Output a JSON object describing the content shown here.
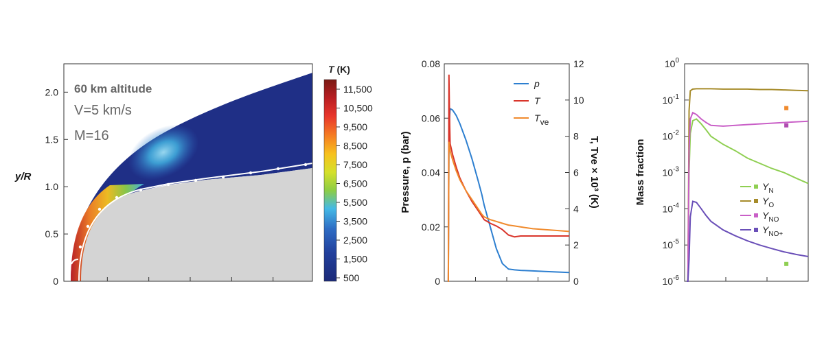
{
  "chart_data": [
    {
      "type": "heatmap",
      "annotations": [
        "60 km altitude",
        "V=5 km/s",
        "M=16"
      ],
      "ylabel": "y/R",
      "ylim": [
        0,
        2.3
      ],
      "y_ticks": [
        "0",
        "0.5",
        "1.0",
        "1.5",
        "2.0"
      ],
      "colorbar": {
        "title_var": "T",
        "title_unit": " (K)",
        "ticks": [
          "11,500",
          "10,500",
          "9,500",
          "8,500",
          "7,500",
          "6,500",
          "5,500",
          "3,500",
          "2,500",
          "1,500",
          "500"
        ],
        "colors": [
          "#7a1a14",
          "#b81e22",
          "#e8352b",
          "#f57f22",
          "#f7c21e",
          "#d4e02a",
          "#8ccd45",
          "#44b9e6",
          "#2e6cc4",
          "#213f9c",
          "#1b2a78"
        ]
      }
    },
    {
      "type": "line",
      "ylabel_left": "Pressure, p (bar)",
      "ylabel_right": "T, Tve × 10³ (K)",
      "ylim_left": [
        0,
        0.08
      ],
      "ylim_right": [
        0,
        12
      ],
      "left_ticks": [
        "0",
        "0.02",
        "0.04",
        "0.06",
        "0.08"
      ],
      "right_ticks": [
        "0",
        "2",
        "4",
        "6",
        "8",
        "10",
        "12"
      ],
      "x": [
        0,
        0.005,
        0.01,
        0.015,
        0.02,
        0.04,
        0.07,
        0.1,
        0.15,
        0.2,
        0.25,
        0.28,
        0.3,
        0.35,
        0.4,
        0.45,
        0.5,
        0.55,
        0.6,
        0.7,
        0.8,
        0.9,
        1.0
      ],
      "series": [
        {
          "name": "p",
          "axis": "left",
          "color": "#2d7fd0",
          "values": [
            0.0,
            0.0,
            0.048,
            0.06,
            0.0635,
            0.063,
            0.061,
            0.058,
            0.052,
            0.045,
            0.037,
            0.032,
            0.028,
            0.02,
            0.012,
            0.0065,
            0.0045,
            0.0042,
            0.004,
            0.0038,
            0.0036,
            0.0034,
            0.0032
          ]
        },
        {
          "name": "T",
          "axis": "right",
          "color": "#d9352b",
          "values": [
            0.0,
            0.0,
            11.4,
            9.0,
            7.6,
            7.0,
            6.3,
            5.7,
            5.0,
            4.4,
            3.9,
            3.6,
            3.4,
            3.2,
            3.05,
            2.85,
            2.55,
            2.45,
            2.5,
            2.5,
            2.5,
            2.5,
            2.5
          ]
        },
        {
          "name": "Tve",
          "axis": "right",
          "color": "#f08a2c",
          "values": [
            0.0,
            0.0,
            7.7,
            7.4,
            7.2,
            6.7,
            6.1,
            5.6,
            5.0,
            4.5,
            4.0,
            3.7,
            3.55,
            3.4,
            3.3,
            3.2,
            3.1,
            3.05,
            3.0,
            2.9,
            2.85,
            2.8,
            2.75
          ]
        }
      ],
      "legend": [
        "p",
        "T",
        "Tve"
      ]
    },
    {
      "type": "line",
      "yscale": "log",
      "ylabel": "Mass fraction",
      "ylim": [
        1e-06,
        1
      ],
      "y_ticks": [
        "10-6",
        "10-5",
        "10-4",
        "10-3",
        "10-2",
        "10-1",
        "100"
      ],
      "x": [
        0,
        0.01,
        0.02,
        0.03,
        0.05,
        0.08,
        0.12,
        0.16,
        0.2,
        0.3,
        0.4,
        0.5,
        0.6,
        0.7,
        0.8,
        0.9,
        1.0
      ],
      "series": [
        {
          "name": "YN",
          "color": "#8fcf52",
          "values": [
            1e-06,
            1e-06,
            0.001,
            0.012,
            0.027,
            0.03,
            0.022,
            0.015,
            0.01,
            0.006,
            0.004,
            0.0025,
            0.0018,
            0.0013,
            0.001,
            0.0007,
            0.0005
          ]
        },
        {
          "name": "YO",
          "color": "#a68b2a",
          "values": [
            1e-06,
            1e-06,
            0.05,
            0.18,
            0.2,
            0.205,
            0.205,
            0.205,
            0.205,
            0.2,
            0.2,
            0.2,
            0.195,
            0.195,
            0.19,
            0.185,
            0.18
          ]
        },
        {
          "name": "YNO",
          "color": "#c95fc7",
          "values": [
            1e-06,
            1e-06,
            0.004,
            0.03,
            0.045,
            0.04,
            0.03,
            0.024,
            0.02,
            0.019,
            0.02,
            0.021,
            0.022,
            0.023,
            0.024,
            0.025,
            0.026
          ]
        },
        {
          "name": "YNO+",
          "color": "#6a4fb8",
          "values": [
            1e-06,
            1e-06,
            4e-06,
            6e-05,
            0.00016,
            0.00015,
            0.0001,
            6.5e-05,
            4.5e-05,
            2.6e-05,
            1.8e-05,
            1.3e-05,
            1e-05,
            8e-06,
            6.5e-06,
            5.5e-06,
            4.8e-06
          ]
        }
      ],
      "markers": [
        {
          "name": "YO",
          "color": "#f08a2c",
          "x": 0.82,
          "y": 0.06
        },
        {
          "name": "YNO",
          "color": "#b04cb0",
          "x": 0.82,
          "y": 0.02
        },
        {
          "name": "YN",
          "color": "#8fcf52",
          "x": 0.82,
          "y": 3e-06
        }
      ],
      "legend": [
        {
          "base": "Y",
          "sub": "N"
        },
        {
          "base": "Y",
          "sub": "O"
        },
        {
          "base": "Y",
          "sub": "NO"
        },
        {
          "base": "Y",
          "sub": "NO+"
        }
      ]
    }
  ]
}
